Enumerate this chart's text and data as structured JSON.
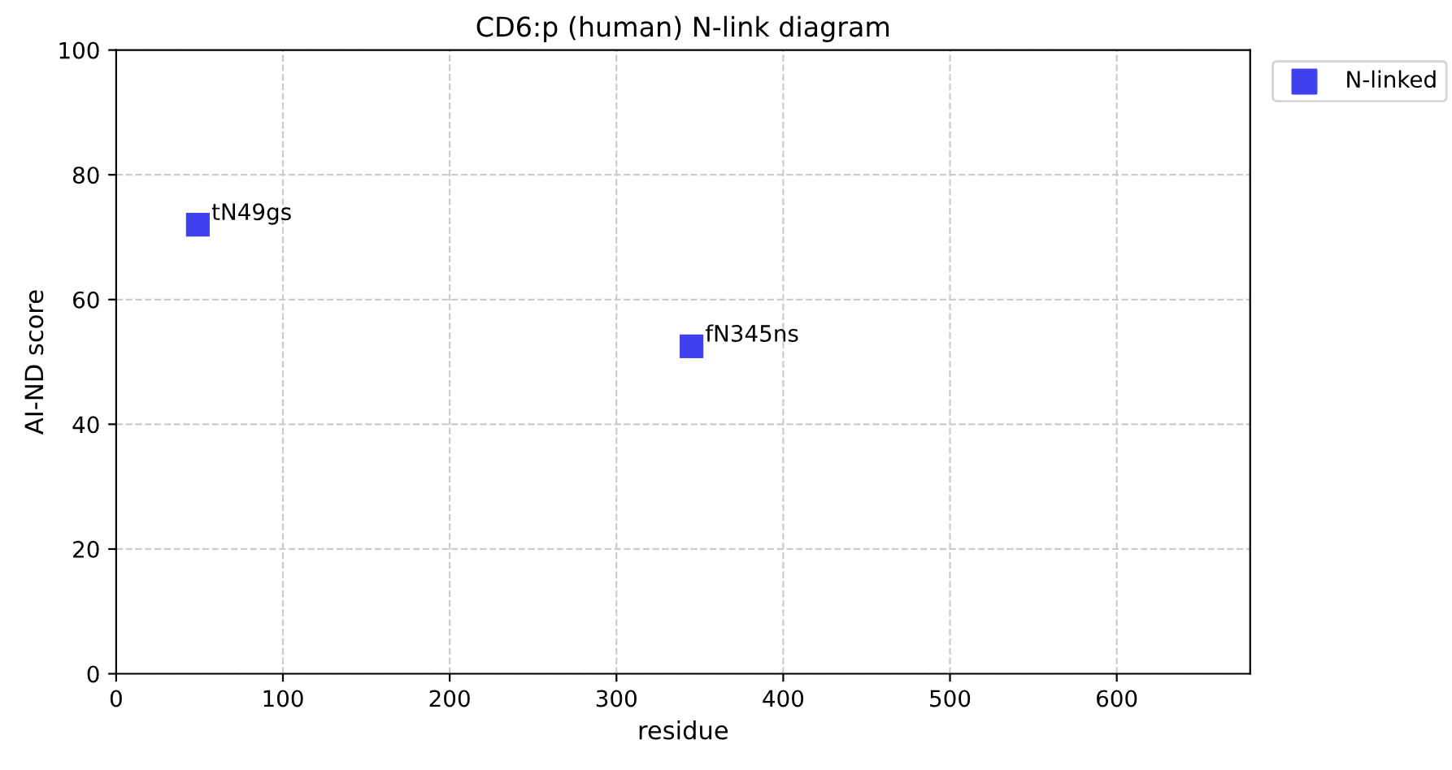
{
  "chart_data": {
    "type": "scatter",
    "title": "CD6:p (human) N-link diagram",
    "xlabel": "residue",
    "ylabel": "AI-ND score",
    "series": [
      {
        "name": "N-linked",
        "color": "#4040ee",
        "x": [
          49,
          345
        ],
        "values": [
          72,
          52.5
        ]
      }
    ],
    "annotations": [
      {
        "text": "tN49gs",
        "x": 49,
        "y": 72
      },
      {
        "text": "fN345ns",
        "x": 345,
        "y": 52.5
      }
    ],
    "xlim": [
      0,
      680
    ],
    "xticks": [
      0,
      100,
      200,
      300,
      400,
      500,
      600
    ],
    "ylim": [
      0,
      100
    ],
    "yticks": [
      0,
      20,
      40,
      60,
      80,
      100
    ],
    "grid": true,
    "legend": "top right",
    "marker": "square"
  }
}
